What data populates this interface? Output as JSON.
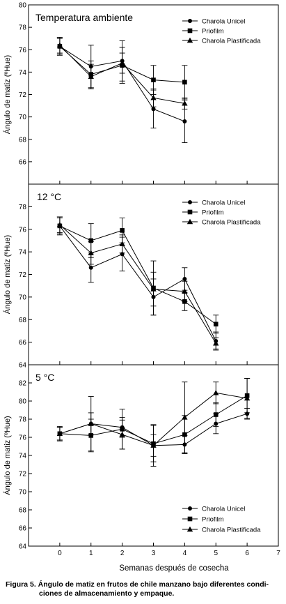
{
  "chart_data": [
    {
      "type": "line",
      "title": "Temperatura ambiente",
      "xlabel": "",
      "ylabel": "Ángulo de matiz (ºHue)",
      "xlim": [
        -1,
        7
      ],
      "ylim": [
        64,
        80
      ],
      "yticks": [
        64,
        66,
        68,
        70,
        72,
        74,
        76,
        78,
        80
      ],
      "yticklabels": [
        "",
        "66",
        "68",
        "70",
        "72",
        "74",
        "76",
        "78",
        "80"
      ],
      "grid": false,
      "legend_position": "top-right",
      "series": [
        {
          "name": "Charola Unicel",
          "marker": "circle",
          "x": [
            0,
            1,
            2,
            3,
            4
          ],
          "y": [
            76.3,
            74.5,
            75.0,
            70.7,
            69.6
          ],
          "err": [
            0.7,
            1.9,
            1.8,
            1.7,
            1.9
          ]
        },
        {
          "name": "Priofilm",
          "marker": "square",
          "x": [
            0,
            1,
            2,
            3,
            4
          ],
          "y": [
            76.3,
            73.8,
            74.6,
            73.3,
            73.1
          ],
          "err": [
            0.8,
            1.2,
            1.6,
            1.3,
            1.5
          ]
        },
        {
          "name": "Charola Plastificada",
          "marker": "triangle",
          "x": [
            0,
            1,
            2,
            3,
            4
          ],
          "y": [
            76.4,
            73.6,
            74.8,
            71.7,
            71.2
          ],
          "err": [
            0.7,
            1.1,
            0.9,
            0.8,
            0.5
          ]
        }
      ]
    },
    {
      "type": "line",
      "title": "12 °C",
      "xlabel": "",
      "ylabel": "Ángulo de matiz (ºHue)",
      "xlim": [
        -1,
        7
      ],
      "ylim": [
        64,
        80
      ],
      "yticks": [
        64,
        66,
        68,
        70,
        72,
        74,
        76,
        78,
        80
      ],
      "yticklabels": [
        "64",
        "66",
        "68",
        "70",
        "72",
        "74",
        "76",
        "78",
        ""
      ],
      "grid": false,
      "legend_position": "top-right",
      "series": [
        {
          "name": "Charola Unicel",
          "marker": "circle",
          "x": [
            0,
            1,
            2,
            3,
            4,
            5
          ],
          "y": [
            76.3,
            72.6,
            73.8,
            70.0,
            71.6,
            66.1
          ],
          "err": [
            0.7,
            1.3,
            1.5,
            1.6,
            1.0,
            0.8
          ]
        },
        {
          "name": "Priofilm",
          "marker": "square",
          "x": [
            0,
            1,
            2,
            3,
            4,
            5
          ],
          "y": [
            76.3,
            75.0,
            75.9,
            70.8,
            69.6,
            67.6
          ],
          "err": [
            0.8,
            1.5,
            1.1,
            2.4,
            0.8,
            0.8
          ]
        },
        {
          "name": "Charola Plastificada",
          "marker": "triangle",
          "x": [
            0,
            1,
            2,
            3,
            4,
            5
          ],
          "y": [
            76.4,
            73.9,
            74.7,
            70.7,
            70.5,
            65.9
          ],
          "err": [
            0.7,
            1.0,
            0.8,
            1.5,
            0.9,
            0.5
          ]
        }
      ]
    },
    {
      "type": "line",
      "title": "5 °C",
      "xlabel": "Semanas después de cosecha",
      "ylabel": "Ángulo de matiz (ºHue)",
      "xlim": [
        -1,
        7
      ],
      "ylim": [
        64,
        84
      ],
      "xticks": [
        0,
        1,
        2,
        3,
        4,
        5,
        6,
        7
      ],
      "yticks": [
        64,
        66,
        68,
        70,
        72,
        74,
        76,
        78,
        80,
        82,
        84
      ],
      "yticklabels": [
        "64",
        "66",
        "68",
        "70",
        "72",
        "74",
        "76",
        "78",
        "80",
        "82",
        ""
      ],
      "grid": false,
      "legend_position": "bottom-right",
      "series": [
        {
          "name": "Charola Unicel",
          "marker": "circle",
          "x": [
            0,
            1,
            2,
            3,
            4,
            5,
            6
          ],
          "y": [
            76.4,
            77.5,
            77.1,
            75.1,
            75.2,
            77.5,
            78.6
          ],
          "err": [
            0.7,
            1.2,
            1.1,
            1.2,
            1.0,
            1.1,
            0.6
          ]
        },
        {
          "name": "Priofilm",
          "marker": "square",
          "x": [
            0,
            1,
            2,
            3,
            4,
            5,
            6
          ],
          "y": [
            76.4,
            76.2,
            76.9,
            75.3,
            76.3,
            78.5,
            80.6
          ],
          "err": [
            0.8,
            1.8,
            2.2,
            2.0,
            2.1,
            1.3,
            1.9
          ]
        },
        {
          "name": "Charola Plastificada",
          "marker": "triangle",
          "x": [
            0,
            1,
            2,
            3,
            4,
            5,
            6
          ],
          "y": [
            76.4,
            77.5,
            76.3,
            75.1,
            78.2,
            80.9,
            80.3
          ],
          "err": [
            0.7,
            3.0,
            1.6,
            2.3,
            3.9,
            1.2,
            2.2
          ]
        }
      ]
    }
  ],
  "caption": {
    "line1": "Figura 5. Ángulo de matiz en frutos de chile manzano bajo diferentes condi-",
    "line2": "ciones de almacenamiento y empaque."
  }
}
